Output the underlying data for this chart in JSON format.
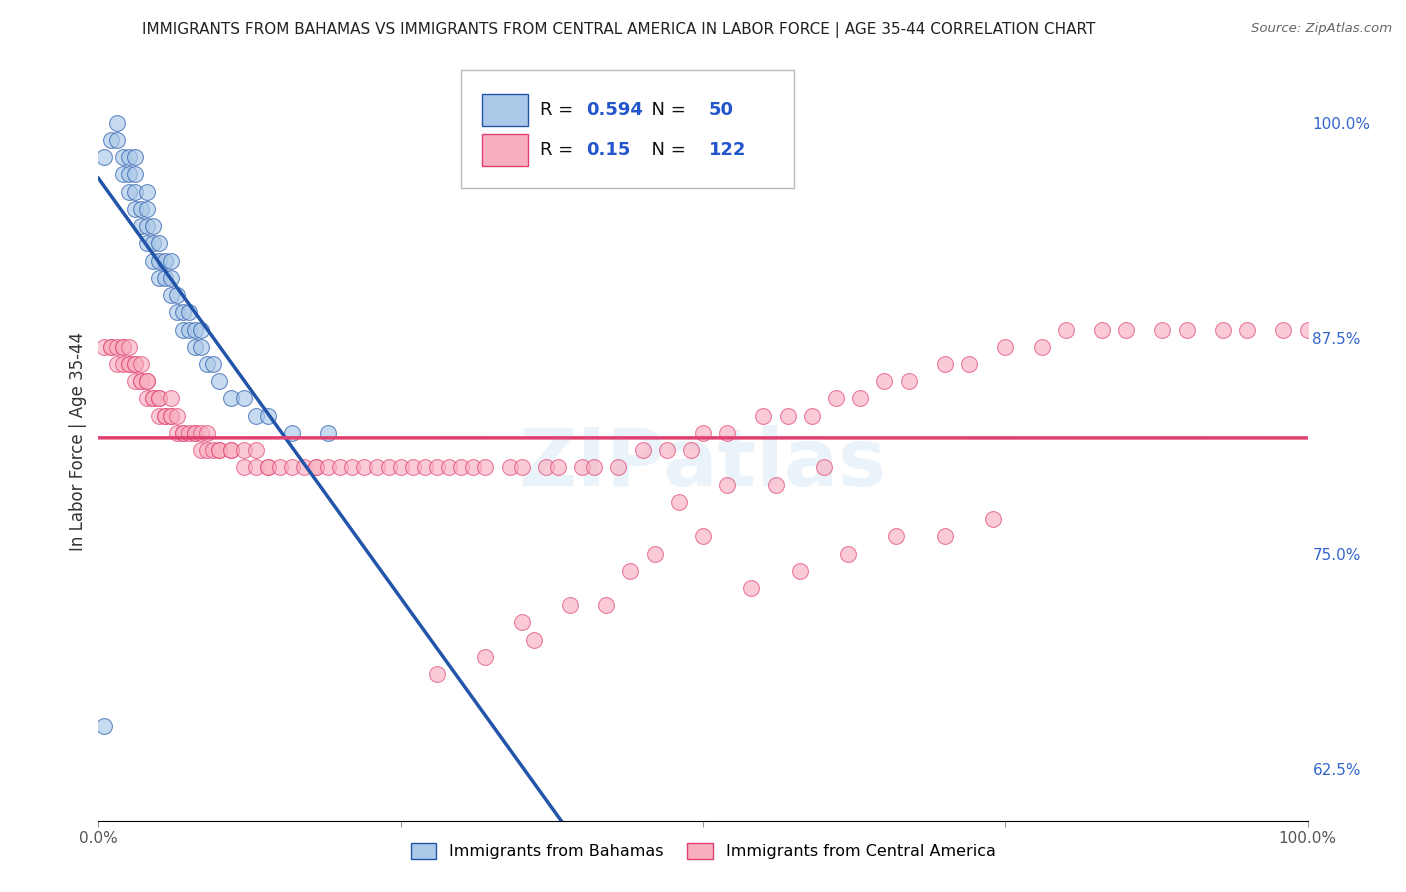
{
  "title": "IMMIGRANTS FROM BAHAMAS VS IMMIGRANTS FROM CENTRAL AMERICA IN LABOR FORCE | AGE 35-44 CORRELATION CHART",
  "source": "Source: ZipAtlas.com",
  "ylabel": "In Labor Force | Age 35-44",
  "legend_bottom": [
    "Immigrants from Bahamas",
    "Immigrants from Central America"
  ],
  "R_blue": 0.594,
  "N_blue": 50,
  "R_pink": 0.15,
  "N_pink": 122,
  "blue_color": "#aac8e8",
  "blue_line_color": "#2255aa",
  "pink_color": "#f8b0c0",
  "pink_line_color": "#e04070",
  "xlim": [
    0.0,
    1.0
  ],
  "ylim": [
    0.595,
    1.035
  ],
  "yticks": [
    0.625,
    0.75,
    0.875,
    1.0
  ],
  "ytick_labels_right": [
    "62.5%",
    "75.0%",
    "87.5%",
    "100.0%"
  ],
  "xtick_labels": [
    "0.0%",
    "",
    "",
    "",
    "100.0%"
  ],
  "xticks": [
    0.0,
    0.25,
    0.5,
    0.75,
    1.0
  ],
  "grid_color": "#cccccc",
  "background_color": "#ffffff",
  "watermark": "ZIPatlas",
  "blue_scatter_x": [
    0.005,
    0.01,
    0.015,
    0.015,
    0.02,
    0.02,
    0.025,
    0.025,
    0.025,
    0.03,
    0.03,
    0.03,
    0.03,
    0.035,
    0.035,
    0.04,
    0.04,
    0.04,
    0.04,
    0.045,
    0.045,
    0.045,
    0.05,
    0.05,
    0.05,
    0.055,
    0.055,
    0.06,
    0.06,
    0.06,
    0.065,
    0.065,
    0.07,
    0.07,
    0.075,
    0.075,
    0.08,
    0.08,
    0.085,
    0.085,
    0.09,
    0.095,
    0.1,
    0.11,
    0.12,
    0.13,
    0.14,
    0.16,
    0.19,
    0.005
  ],
  "blue_scatter_y": [
    0.98,
    0.99,
    0.99,
    1.0,
    0.97,
    0.98,
    0.96,
    0.97,
    0.98,
    0.95,
    0.96,
    0.97,
    0.98,
    0.94,
    0.95,
    0.93,
    0.94,
    0.95,
    0.96,
    0.92,
    0.93,
    0.94,
    0.91,
    0.92,
    0.93,
    0.91,
    0.92,
    0.9,
    0.91,
    0.92,
    0.89,
    0.9,
    0.88,
    0.89,
    0.88,
    0.89,
    0.87,
    0.88,
    0.87,
    0.88,
    0.86,
    0.86,
    0.85,
    0.84,
    0.84,
    0.83,
    0.83,
    0.82,
    0.82,
    0.65
  ],
  "pink_scatter_x": [
    0.005,
    0.01,
    0.01,
    0.015,
    0.015,
    0.02,
    0.02,
    0.02,
    0.025,
    0.025,
    0.025,
    0.03,
    0.03,
    0.03,
    0.035,
    0.035,
    0.035,
    0.04,
    0.04,
    0.04,
    0.045,
    0.045,
    0.05,
    0.05,
    0.05,
    0.055,
    0.055,
    0.06,
    0.06,
    0.06,
    0.065,
    0.065,
    0.07,
    0.07,
    0.075,
    0.08,
    0.08,
    0.085,
    0.085,
    0.09,
    0.09,
    0.095,
    0.1,
    0.1,
    0.11,
    0.11,
    0.12,
    0.12,
    0.13,
    0.13,
    0.14,
    0.14,
    0.15,
    0.16,
    0.17,
    0.18,
    0.18,
    0.19,
    0.2,
    0.21,
    0.22,
    0.23,
    0.24,
    0.25,
    0.26,
    0.27,
    0.28,
    0.29,
    0.3,
    0.31,
    0.32,
    0.34,
    0.35,
    0.37,
    0.38,
    0.4,
    0.41,
    0.43,
    0.45,
    0.47,
    0.49,
    0.5,
    0.52,
    0.55,
    0.57,
    0.59,
    0.61,
    0.63,
    0.65,
    0.67,
    0.7,
    0.72,
    0.75,
    0.78,
    0.8,
    0.83,
    0.85,
    0.88,
    0.9,
    0.93,
    0.95,
    0.98,
    1.0,
    0.44,
    0.46,
    0.5,
    0.54,
    0.58,
    0.62,
    0.66,
    0.7,
    0.74,
    0.35,
    0.39,
    0.42,
    0.28,
    0.32,
    0.36,
    0.48,
    0.52,
    0.56,
    0.6
  ],
  "pink_scatter_y": [
    0.87,
    0.87,
    0.87,
    0.87,
    0.86,
    0.86,
    0.87,
    0.87,
    0.86,
    0.86,
    0.87,
    0.85,
    0.86,
    0.86,
    0.85,
    0.85,
    0.86,
    0.84,
    0.85,
    0.85,
    0.84,
    0.84,
    0.83,
    0.84,
    0.84,
    0.83,
    0.83,
    0.83,
    0.83,
    0.84,
    0.82,
    0.83,
    0.82,
    0.82,
    0.82,
    0.82,
    0.82,
    0.81,
    0.82,
    0.81,
    0.82,
    0.81,
    0.81,
    0.81,
    0.81,
    0.81,
    0.8,
    0.81,
    0.8,
    0.81,
    0.8,
    0.8,
    0.8,
    0.8,
    0.8,
    0.8,
    0.8,
    0.8,
    0.8,
    0.8,
    0.8,
    0.8,
    0.8,
    0.8,
    0.8,
    0.8,
    0.8,
    0.8,
    0.8,
    0.8,
    0.8,
    0.8,
    0.8,
    0.8,
    0.8,
    0.8,
    0.8,
    0.8,
    0.81,
    0.81,
    0.81,
    0.82,
    0.82,
    0.83,
    0.83,
    0.83,
    0.84,
    0.84,
    0.85,
    0.85,
    0.86,
    0.86,
    0.87,
    0.87,
    0.88,
    0.88,
    0.88,
    0.88,
    0.88,
    0.88,
    0.88,
    0.88,
    0.88,
    0.74,
    0.75,
    0.76,
    0.73,
    0.74,
    0.75,
    0.76,
    0.76,
    0.77,
    0.71,
    0.72,
    0.72,
    0.68,
    0.69,
    0.7,
    0.78,
    0.79,
    0.79,
    0.8
  ]
}
